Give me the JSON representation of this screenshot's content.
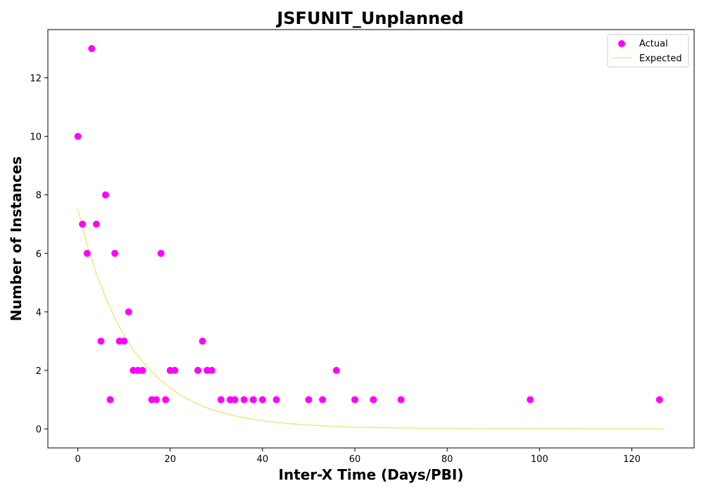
{
  "chart_data": {
    "type": "scatter",
    "title": "JSFUNIT_Unplanned",
    "xlabel": "Inter-X Time (Days/PBI)",
    "ylabel": "Number of Instances",
    "xlim": [
      -6.5,
      133.5
    ],
    "ylim": [
      -0.65,
      13.65
    ],
    "xticks": [
      0,
      20,
      40,
      60,
      80,
      100,
      120
    ],
    "yticks": [
      0,
      2,
      4,
      6,
      8,
      10,
      12
    ],
    "grid": false,
    "legend_position": "top-right",
    "series": [
      {
        "name": "Actual",
        "kind": "scatter",
        "color": "#ff00ff",
        "points": [
          [
            0,
            10
          ],
          [
            1,
            7
          ],
          [
            2,
            6
          ],
          [
            3,
            13
          ],
          [
            4,
            7
          ],
          [
            5,
            3
          ],
          [
            6,
            8
          ],
          [
            7,
            1
          ],
          [
            8,
            6
          ],
          [
            9,
            3
          ],
          [
            10,
            3
          ],
          [
            11,
            4
          ],
          [
            12,
            2
          ],
          [
            13,
            2
          ],
          [
            14,
            2
          ],
          [
            16,
            1
          ],
          [
            17,
            1
          ],
          [
            18,
            6
          ],
          [
            19,
            1
          ],
          [
            20,
            2
          ],
          [
            21,
            2
          ],
          [
            26,
            2
          ],
          [
            27,
            3
          ],
          [
            28,
            2
          ],
          [
            29,
            2
          ],
          [
            31,
            1
          ],
          [
            33,
            1
          ],
          [
            34,
            1
          ],
          [
            36,
            1
          ],
          [
            38,
            1
          ],
          [
            40,
            1
          ],
          [
            43,
            1
          ],
          [
            50,
            1
          ],
          [
            53,
            1
          ],
          [
            56,
            2
          ],
          [
            60,
            1
          ],
          [
            64,
            1
          ],
          [
            70,
            1
          ],
          [
            98,
            1
          ],
          [
            126,
            1
          ]
        ]
      },
      {
        "name": "Expected",
        "kind": "line",
        "color": "#f0e68c",
        "points": [
          [
            0,
            7.5
          ],
          [
            2,
            6.3
          ],
          [
            4,
            5.3
          ],
          [
            6,
            4.5
          ],
          [
            8,
            3.8
          ],
          [
            10,
            3.2
          ],
          [
            12,
            2.7
          ],
          [
            14,
            2.3
          ],
          [
            16,
            1.95
          ],
          [
            18,
            1.65
          ],
          [
            20,
            1.4
          ],
          [
            22,
            1.18
          ],
          [
            24,
            1.0
          ],
          [
            26,
            0.85
          ],
          [
            28,
            0.72
          ],
          [
            30,
            0.61
          ],
          [
            33,
            0.48
          ],
          [
            36,
            0.38
          ],
          [
            40,
            0.28
          ],
          [
            45,
            0.19
          ],
          [
            50,
            0.13
          ],
          [
            55,
            0.09
          ],
          [
            60,
            0.06
          ],
          [
            70,
            0.03
          ],
          [
            80,
            0.015
          ],
          [
            90,
            0.008
          ],
          [
            100,
            0.004
          ],
          [
            110,
            0.002
          ],
          [
            120,
            0.001
          ],
          [
            127,
            0.0
          ]
        ]
      }
    ]
  }
}
